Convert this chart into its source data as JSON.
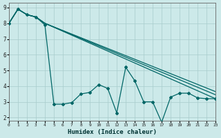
{
  "xlabel": "Humidex (Indice chaleur)",
  "bg_color": "#cce9e9",
  "grid_color": "#a8cccc",
  "line_color": "#006666",
  "xlim": [
    0,
    23
  ],
  "ylim": [
    1.8,
    9.3
  ],
  "xticks": [
    0,
    1,
    2,
    3,
    4,
    5,
    6,
    7,
    8,
    9,
    10,
    11,
    12,
    13,
    14,
    15,
    16,
    17,
    18,
    19,
    20,
    21,
    22,
    23
  ],
  "yticks": [
    2,
    3,
    4,
    5,
    6,
    7,
    8,
    9
  ],
  "smooth1_x": [
    0,
    1,
    2,
    3,
    4,
    23
  ],
  "smooth1_y": [
    8.0,
    8.9,
    8.55,
    8.4,
    8.0,
    3.2
  ],
  "smooth2_x": [
    0,
    1,
    2,
    3,
    4,
    23
  ],
  "smooth2_y": [
    8.0,
    8.9,
    8.55,
    8.4,
    8.0,
    3.45
  ],
  "smooth3_x": [
    0,
    1,
    2,
    3,
    4,
    23
  ],
  "smooth3_y": [
    8.0,
    8.9,
    8.55,
    8.4,
    8.0,
    3.65
  ],
  "jagged_x": [
    0,
    1,
    2,
    3,
    4,
    5,
    6,
    7,
    8,
    9,
    10,
    11,
    12,
    13,
    14,
    15,
    16,
    17,
    18,
    19,
    20,
    21,
    22,
    23
  ],
  "jagged_y": [
    8.0,
    8.9,
    8.55,
    8.4,
    7.9,
    2.85,
    2.85,
    2.95,
    3.5,
    3.6,
    4.1,
    3.85,
    2.3,
    5.2,
    4.35,
    3.0,
    3.0,
    1.7,
    3.3,
    3.55,
    3.55,
    3.25,
    3.2,
    3.2
  ]
}
